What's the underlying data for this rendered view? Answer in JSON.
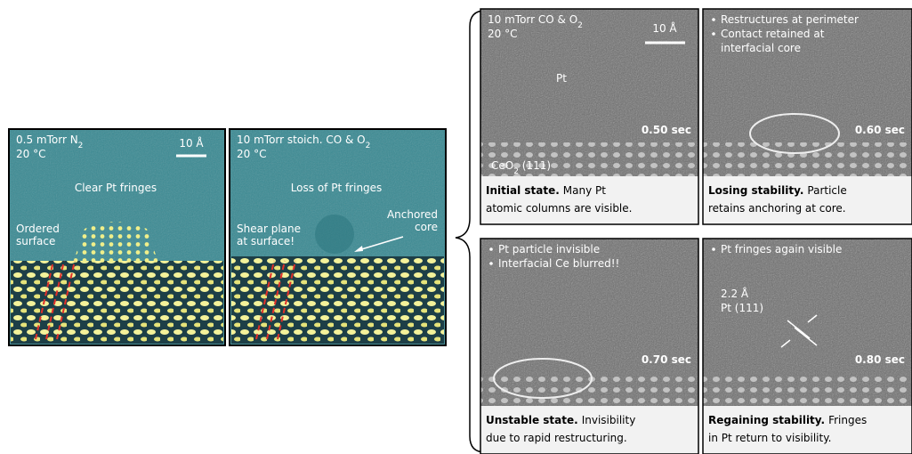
{
  "left_panels": [
    {
      "condition": {
        "text": "0.5 mTorr N",
        "sub": "2"
      },
      "temperature": "20 °C",
      "scale": "10 Å",
      "caption": "Clear Pt fringes",
      "annotations": [
        [
          "Ordered",
          "surface"
        ]
      ]
    },
    {
      "condition": {
        "text": "10 mTorr stoich. CO & O",
        "sub": "2"
      },
      "temperature": "20 °C",
      "caption": "Loss of Pt fringes",
      "annotations": [
        [
          "Shear plane",
          "at surface!"
        ],
        [
          "Anchored",
          "core"
        ]
      ]
    }
  ],
  "right_panels": [
    {
      "condition": {
        "text": "10 mTorr CO & O",
        "sub": "2"
      },
      "temperature": "20 °C",
      "scale": "10 Å",
      "label": [
        "Pt"
      ],
      "substrate": {
        "text": "CeO",
        "sub": "2",
        "after": " (111)"
      },
      "time": "0.50 sec",
      "caption": {
        "bold": "Initial state.",
        "lines": [
          "Many Pt",
          "atomic columns are visible."
        ]
      }
    },
    {
      "bullets": [
        [
          "Restructures at perimeter"
        ],
        [
          "Contact retained at",
          "interfacial core"
        ]
      ],
      "time": "0.60 sec",
      "caption": {
        "bold": "Losing stability.",
        "lines": [
          "Particle",
          "retains anchoring at core."
        ]
      }
    },
    {
      "bullets": [
        [
          "Pt particle invisible"
        ],
        [
          "Interfacial Ce blurred!!"
        ]
      ],
      "time": "0.70 sec",
      "caption": {
        "bold": "Unstable state.",
        "lines": [
          "Invisibility",
          "due to rapid restructuring."
        ]
      }
    },
    {
      "bullets": [
        [
          "Pt fringes again visible"
        ]
      ],
      "label": [
        "2.2 Å",
        "Pt (111)"
      ],
      "time": "0.80 sec",
      "caption": {
        "bold": "Regaining stability.",
        "lines": [
          "Fringes",
          "in Pt return to visibility."
        ]
      }
    }
  ]
}
